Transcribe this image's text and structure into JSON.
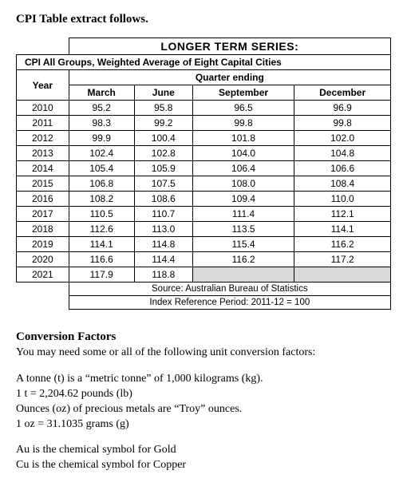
{
  "title": "CPI Table extract follows.",
  "table": {
    "banner": "LONGER TERM SERIES:",
    "subtitle": "CPI All Groups, Weighted Average of Eight Capital Cities",
    "quarter_header": "Quarter ending",
    "year_header": "Year",
    "columns": [
      "March",
      "June",
      "September",
      "December"
    ],
    "rows": [
      {
        "year": "2010",
        "vals": [
          "95.2",
          "95.8",
          "96.5",
          "96.9"
        ]
      },
      {
        "year": "2011",
        "vals": [
          "98.3",
          "99.2",
          "99.8",
          "99.8"
        ]
      },
      {
        "year": "2012",
        "vals": [
          "99.9",
          "100.4",
          "101.8",
          "102.0"
        ]
      },
      {
        "year": "2013",
        "vals": [
          "102.4",
          "102.8",
          "104.0",
          "104.8"
        ]
      },
      {
        "year": "2014",
        "vals": [
          "105.4",
          "105.9",
          "106.4",
          "106.6"
        ]
      },
      {
        "year": "2015",
        "vals": [
          "106.8",
          "107.5",
          "108.0",
          "108.4"
        ]
      },
      {
        "year": "2016",
        "vals": [
          "108.2",
          "108.6",
          "109.4",
          "110.0"
        ]
      },
      {
        "year": "2017",
        "vals": [
          "110.5",
          "110.7",
          "111.4",
          "112.1"
        ]
      },
      {
        "year": "2018",
        "vals": [
          "112.6",
          "113.0",
          "113.5",
          "114.1"
        ]
      },
      {
        "year": "2019",
        "vals": [
          "114.1",
          "114.8",
          "115.4",
          "116.2"
        ]
      },
      {
        "year": "2020",
        "vals": [
          "116.6",
          "114.4",
          "116.2",
          "117.2"
        ]
      },
      {
        "year": "2021",
        "vals": [
          "117.9",
          "118.8",
          "",
          ""
        ],
        "shaded": [
          2,
          3
        ]
      }
    ],
    "source": "Source: Australian Bureau of Statistics",
    "ref": "Index Reference Period: 2011-12 = 100"
  },
  "conversion": {
    "heading": "Conversion Factors",
    "intro": "You may need some or all of the following unit conversion factors:",
    "lines1": [
      "A tonne (t) is a “metric tonne” of 1,000 kilograms (kg).",
      "1 t = 2,204.62 pounds (lb)",
      "Ounces (oz) of precious metals are “Troy” ounces.",
      "1 oz = 31.1035 grams (g)"
    ],
    "lines2": [
      "Au is the chemical symbol for Gold",
      "Cu is the chemical symbol for Copper"
    ]
  }
}
